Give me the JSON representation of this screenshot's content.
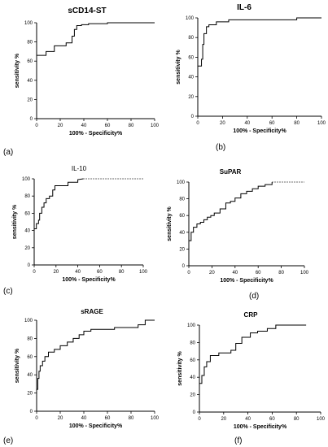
{
  "chart_data": [
    {
      "type": "line",
      "panel": "(a)",
      "title": "sCD14-ST",
      "xlabel": "100% - Specificity%",
      "ylabel": "sensitivity %",
      "xlim": [
        0,
        100
      ],
      "ylim": [
        0,
        100
      ],
      "xticks": [
        0,
        20,
        40,
        60,
        80,
        100
      ],
      "yticks": [
        0,
        20,
        40,
        60,
        80,
        100
      ],
      "grid": false,
      "x": [
        0,
        0,
        8,
        8,
        15,
        15,
        25,
        25,
        30,
        30,
        32,
        32,
        34,
        34,
        38,
        38,
        44,
        44,
        60,
        60,
        100
      ],
      "y": [
        0,
        66,
        66,
        70,
        70,
        76,
        76,
        79,
        79,
        86,
        86,
        93,
        93,
        97,
        97,
        98,
        98,
        99,
        99,
        100,
        100
      ]
    },
    {
      "type": "line",
      "panel": "(b)",
      "title": "IL-6",
      "xlabel": "100% - Specificity%",
      "ylabel": "sensitivity %",
      "xlim": [
        0,
        100
      ],
      "ylim": [
        0,
        100
      ],
      "xticks": [
        0,
        20,
        40,
        60,
        80,
        100
      ],
      "yticks": [
        0,
        20,
        40,
        60,
        80,
        100
      ],
      "grid": false,
      "x": [
        0,
        0,
        3,
        3,
        4,
        4,
        5,
        5,
        7,
        7,
        9,
        9,
        15,
        15,
        25,
        25,
        80,
        80,
        100
      ],
      "y": [
        0,
        51,
        51,
        58,
        58,
        73,
        73,
        84,
        84,
        91,
        91,
        93,
        93,
        96,
        96,
        98,
        98,
        100,
        100
      ]
    },
    {
      "type": "line",
      "panel": "(c)",
      "title": "IL-10",
      "xlabel": "100% - Specificity%",
      "ylabel": "sensitivity %",
      "xlim": [
        0,
        100
      ],
      "ylim": [
        0,
        100
      ],
      "xticks": [
        0,
        20,
        40,
        60,
        80,
        100
      ],
      "yticks": [
        0,
        20,
        40,
        60,
        80,
        100
      ],
      "grid": false,
      "x": [
        0,
        0,
        2,
        2,
        4,
        4,
        5,
        5,
        7,
        7,
        9,
        9,
        11,
        11,
        14,
        14,
        17,
        17,
        19,
        19,
        31,
        31,
        40,
        40,
        45,
        100
      ],
      "y": [
        0,
        42,
        42,
        48,
        48,
        52,
        52,
        60,
        60,
        67,
        67,
        72,
        72,
        77,
        77,
        80,
        80,
        87,
        87,
        92,
        92,
        96,
        96,
        99,
        100,
        100
      ]
    },
    {
      "type": "line",
      "panel": "(d)",
      "title": "SuPAR",
      "xlabel": "100% - Specificity%",
      "ylabel": "sensitivity %",
      "xlim": [
        0,
        100
      ],
      "ylim": [
        0,
        100
      ],
      "xticks": [
        0,
        20,
        40,
        60,
        80,
        100
      ],
      "yticks": [
        0,
        20,
        40,
        60,
        80,
        100
      ],
      "grid": false,
      "x": [
        0,
        0,
        2,
        2,
        4,
        4,
        7,
        7,
        10,
        10,
        13,
        13,
        16,
        16,
        19,
        19,
        22,
        22,
        27,
        27,
        32,
        32,
        36,
        36,
        40,
        40,
        45,
        45,
        50,
        50,
        55,
        55,
        60,
        60,
        66,
        66,
        72,
        72,
        100
      ],
      "y": [
        0,
        30,
        30,
        40,
        40,
        46,
        46,
        50,
        50,
        52,
        52,
        55,
        55,
        58,
        58,
        60,
        60,
        63,
        63,
        68,
        68,
        75,
        75,
        77,
        77,
        81,
        81,
        86,
        86,
        89,
        89,
        92,
        92,
        95,
        95,
        97,
        97,
        100,
        100
      ]
    },
    {
      "type": "line",
      "panel": "(e)",
      "title": "sRAGE",
      "xlabel": "100% - Specificity%",
      "ylabel": "sensitivity %",
      "xlim": [
        0,
        100
      ],
      "ylim": [
        0,
        100
      ],
      "xticks": [
        0,
        20,
        40,
        60,
        80,
        100
      ],
      "yticks": [
        0,
        20,
        40,
        60,
        80,
        100
      ],
      "grid": false,
      "x": [
        0,
        0,
        1,
        1,
        2,
        2,
        3,
        3,
        5,
        5,
        7,
        7,
        10,
        10,
        15,
        15,
        20,
        20,
        26,
        26,
        31,
        31,
        36,
        36,
        40,
        40,
        46,
        46,
        66,
        66,
        86,
        86,
        92,
        92,
        100
      ],
      "y": [
        0,
        24,
        24,
        36,
        36,
        44,
        44,
        50,
        50,
        55,
        55,
        60,
        60,
        65,
        65,
        68,
        68,
        72,
        72,
        76,
        76,
        80,
        80,
        84,
        84,
        88,
        88,
        90,
        90,
        92,
        92,
        95,
        95,
        100,
        100
      ]
    },
    {
      "type": "line",
      "panel": "(f)",
      "title": "CRP",
      "xlabel": "100% - Specificity%",
      "ylabel": "sensitivity %",
      "xlim": [
        0,
        100
      ],
      "ylim": [
        0,
        100
      ],
      "xticks": [
        0,
        20,
        40,
        60,
        80,
        100
      ],
      "yticks": [
        0,
        20,
        40,
        60,
        80,
        100
      ],
      "grid": false,
      "x": [
        0,
        0,
        2,
        2,
        4,
        4,
        6,
        6,
        9,
        9,
        16,
        16,
        26,
        26,
        30,
        30,
        35,
        35,
        42,
        42,
        48,
        48,
        56,
        56,
        63,
        63,
        88
      ],
      "y": [
        0,
        33,
        33,
        42,
        42,
        52,
        52,
        58,
        58,
        65,
        65,
        68,
        68,
        71,
        71,
        79,
        79,
        86,
        86,
        91,
        91,
        93,
        93,
        96,
        96,
        100,
        100
      ]
    }
  ]
}
